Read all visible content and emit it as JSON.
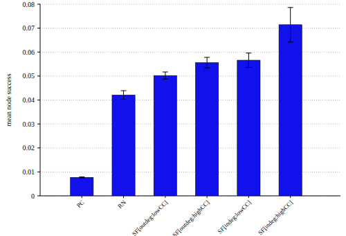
{
  "chart_data": {
    "type": "bar",
    "y_label": "mean node success",
    "categories": [
      "PC",
      "RN",
      "SF[outdeg:lowCC]",
      "SF[outdeg:highCC]",
      "SF[indeg:lowCC]",
      "SF[indeg:highCC]"
    ],
    "values": [
      0.0077,
      0.0421,
      0.0502,
      0.0556,
      0.0566,
      0.0714
    ],
    "errors": [
      0.0002,
      0.0018,
      0.0015,
      0.0022,
      0.003,
      0.0072
    ],
    "color": "#1111ee",
    "ylim": [
      0,
      0.08
    ],
    "yticks": [
      0,
      0.01,
      0.02,
      0.03,
      0.04,
      0.05,
      0.06,
      0.07,
      0.08
    ],
    "grid": true
  }
}
